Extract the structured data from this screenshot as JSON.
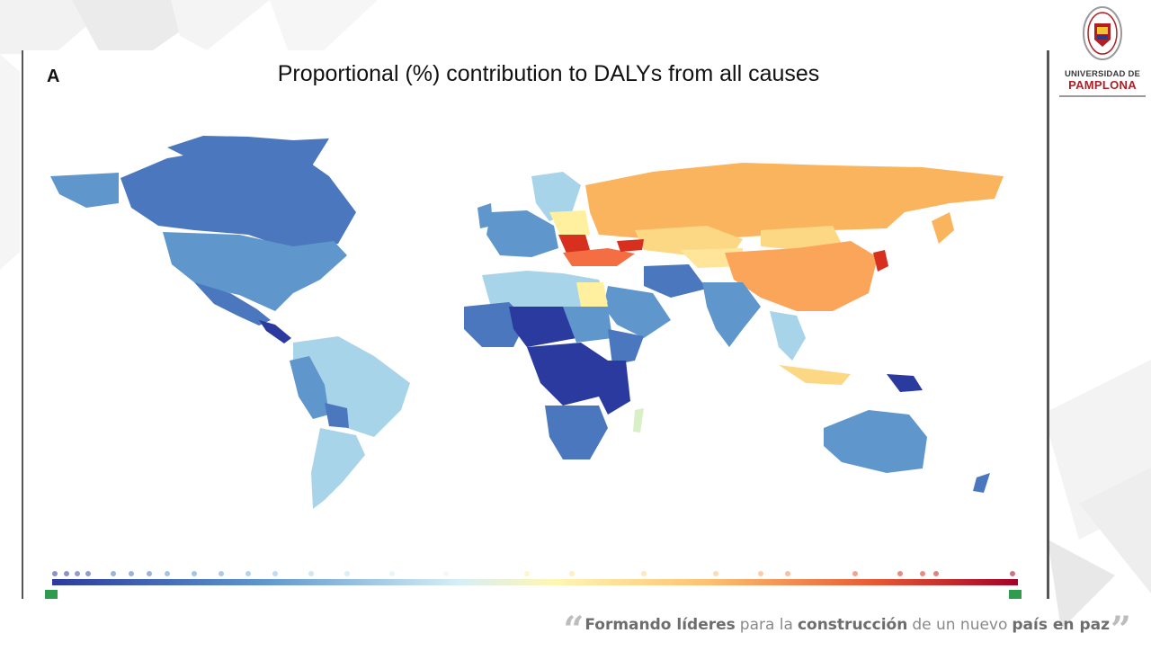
{
  "slide": {
    "panel_letter": "A",
    "map_title": "Proportional (%) contribution to DALYs from all causes"
  },
  "logo": {
    "line1": "UNIVERSIDAD DE",
    "line2": "PAMPLONA"
  },
  "slogan": {
    "part1": "Formando líderes",
    "part2": "para la",
    "part3": "construcción",
    "part4": "de un nuevo",
    "part5": "país en paz"
  },
  "colors": {
    "deep_blue": "#2b3a9e",
    "mid_blue": "#4a77bd",
    "light_blue": "#5f97cc",
    "pale_blue": "#a8d4ea",
    "pale_yellow": "#fff0a0",
    "orange": "#fbb45e",
    "red": "#d7301f",
    "brand_red": "#b11f24"
  },
  "icons": {
    "seal": "university-seal-icon",
    "quote_open": "quote-open-icon",
    "quote_close": "quote-close-icon"
  }
}
